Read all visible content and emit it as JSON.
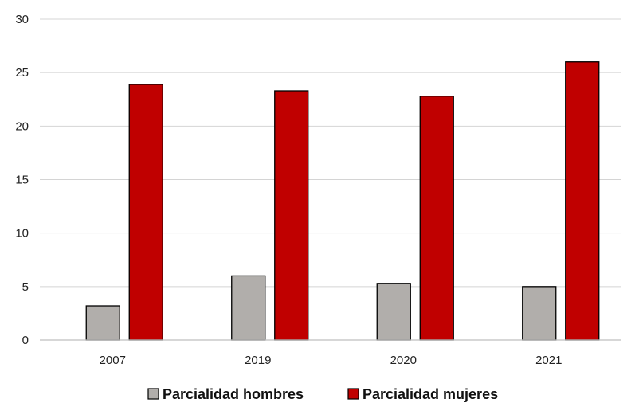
{
  "chart_data": {
    "type": "bar",
    "title": "",
    "xlabel": "",
    "ylabel": "",
    "categories": [
      "2007",
      "2019",
      "2020",
      "2021"
    ],
    "series": [
      {
        "name": "Parcialidad hombres",
        "color": "#b1aeab",
        "values": [
          3.2,
          6.0,
          5.3,
          5.0
        ]
      },
      {
        "name": "Parcialidad mujeres",
        "color": "#c00000",
        "values": [
          23.9,
          23.3,
          22.8,
          26.0
        ]
      }
    ],
    "ylim": [
      0,
      30
    ],
    "yticks": [
      "0",
      "5",
      "10",
      "15",
      "20",
      "25",
      "30"
    ],
    "grid": true,
    "legend_position": "bottom"
  }
}
